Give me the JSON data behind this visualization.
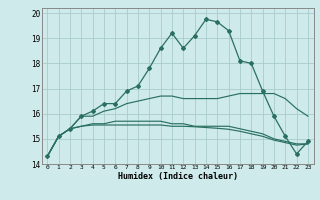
{
  "xlabel": "Humidex (Indice chaleur)",
  "ylabel": "",
  "background_color": "#ceeaea",
  "grid_color": "#a8cccc",
  "line_color": "#2a7060",
  "xlim": [
    -0.5,
    23.5
  ],
  "ylim": [
    14,
    20.2
  ],
  "x_ticks": [
    0,
    1,
    2,
    3,
    4,
    5,
    6,
    7,
    8,
    9,
    10,
    11,
    12,
    13,
    14,
    15,
    16,
    17,
    18,
    19,
    20,
    21,
    22,
    23
  ],
  "y_ticks": [
    14,
    15,
    16,
    17,
    18,
    19,
    20
  ],
  "series": [
    [
      14.3,
      15.1,
      15.4,
      15.9,
      16.1,
      16.4,
      16.4,
      16.9,
      17.1,
      17.8,
      18.6,
      19.2,
      18.6,
      19.1,
      19.75,
      19.65,
      19.3,
      18.1,
      18.0,
      16.9,
      15.9,
      15.1,
      14.4,
      14.9
    ],
    [
      14.3,
      15.1,
      15.4,
      15.9,
      15.9,
      16.1,
      16.2,
      16.4,
      16.5,
      16.6,
      16.7,
      16.7,
      16.6,
      16.6,
      16.6,
      16.6,
      16.7,
      16.8,
      16.8,
      16.8,
      16.8,
      16.6,
      16.2,
      15.9
    ],
    [
      14.3,
      15.1,
      15.4,
      15.5,
      15.6,
      15.6,
      15.7,
      15.7,
      15.7,
      15.7,
      15.7,
      15.6,
      15.6,
      15.5,
      15.5,
      15.5,
      15.5,
      15.4,
      15.3,
      15.2,
      15.0,
      14.9,
      14.8,
      14.8
    ],
    [
      14.3,
      15.1,
      15.4,
      15.5,
      15.55,
      15.55,
      15.55,
      15.55,
      15.55,
      15.55,
      15.55,
      15.5,
      15.5,
      15.48,
      15.45,
      15.42,
      15.38,
      15.3,
      15.2,
      15.1,
      14.95,
      14.85,
      14.75,
      14.8
    ]
  ]
}
